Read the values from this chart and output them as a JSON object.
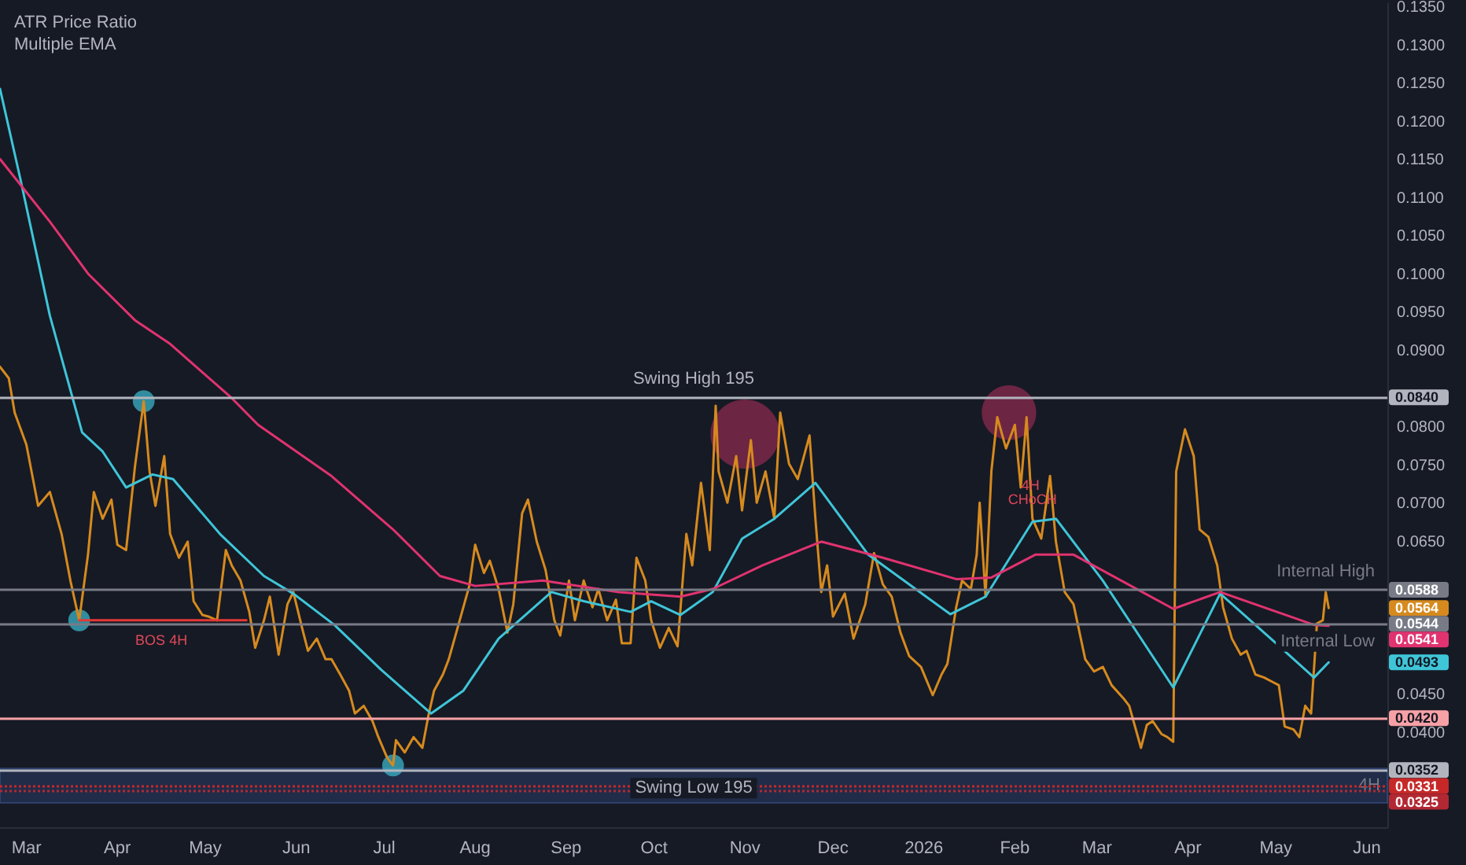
{
  "chart_data": {
    "type": "line",
    "title": "ATR Price Ratio",
    "subtitle": "Multiple EMA",
    "x": [
      "2025-02-20",
      "2025-02-23",
      "2025-02-25",
      "2025-03-01",
      "2025-03-05",
      "2025-03-09",
      "2025-03-13",
      "2025-03-16",
      "2025-03-19",
      "2025-03-22",
      "2025-03-24",
      "2025-03-27",
      "2025-03-30",
      "2025-04-01",
      "2025-04-04",
      "2025-04-07",
      "2025-04-10",
      "2025-04-12",
      "2025-04-14",
      "2025-04-17",
      "2025-04-19",
      "2025-04-22",
      "2025-04-25",
      "2025-04-27",
      "2025-04-30",
      "2025-05-02",
      "2025-05-05",
      "2025-05-08",
      "2025-05-10",
      "2025-05-13",
      "2025-05-16",
      "2025-05-18",
      "2025-05-21",
      "2025-05-23",
      "2025-05-26",
      "2025-05-29",
      "2025-05-31",
      "2025-06-03",
      "2025-06-05",
      "2025-06-08",
      "2025-06-11",
      "2025-06-13",
      "2025-06-16",
      "2025-06-19",
      "2025-06-21",
      "2025-06-24",
      "2025-06-27",
      "2025-06-29",
      "2025-07-02",
      "2025-07-04",
      "2025-07-05",
      "2025-07-08",
      "2025-07-11",
      "2025-07-14",
      "2025-07-16",
      "2025-07-18",
      "2025-07-21",
      "2025-07-23",
      "2025-07-26",
      "2025-07-30",
      "2025-08-01",
      "2025-08-04",
      "2025-08-06",
      "2025-08-09",
      "2025-08-12",
      "2025-08-14",
      "2025-08-17",
      "2025-08-19",
      "2025-08-22",
      "2025-08-25",
      "2025-08-28",
      "2025-08-30",
      "2025-09-02",
      "2025-09-04",
      "2025-09-07",
      "2025-09-10",
      "2025-09-12",
      "2025-09-15",
      "2025-09-18",
      "2025-09-20",
      "2025-09-23",
      "2025-09-25",
      "2025-09-28",
      "2025-09-30",
      "2025-10-03",
      "2025-10-06",
      "2025-10-09",
      "2025-10-12",
      "2025-10-14",
      "2025-10-17",
      "2025-10-20",
      "2025-10-22",
      "2025-10-23",
      "2025-10-26",
      "2025-10-29",
      "2025-10-31",
      "2025-11-03",
      "2025-11-05",
      "2025-11-08",
      "2025-11-11",
      "2025-11-13",
      "2025-11-16",
      "2025-11-19",
      "2025-11-23",
      "2025-11-25",
      "2025-11-27",
      "2025-11-29",
      "2025-12-01",
      "2025-12-05",
      "2025-12-08",
      "2025-12-12",
      "2025-12-15",
      "2025-12-18",
      "2025-12-21",
      "2025-12-24",
      "2025-12-27",
      "2025-12-31",
      "2026-01-04",
      "2026-01-07",
      "2026-01-09",
      "2026-01-12",
      "2026-01-14",
      "2026-01-17",
      "2026-01-19",
      "2026-01-20",
      "2026-01-22",
      "2026-01-24",
      "2026-01-26",
      "2026-01-29",
      "2026-02-01",
      "2026-02-03",
      "2026-02-05",
      "2026-02-07",
      "2026-02-10",
      "2026-02-13",
      "2026-02-15",
      "2026-02-18",
      "2026-02-21",
      "2026-02-25",
      "2026-02-28",
      "2026-03-03",
      "2026-03-06",
      "2026-03-10",
      "2026-03-12",
      "2026-03-16",
      "2026-03-18",
      "2026-03-20",
      "2026-03-23",
      "2026-03-25",
      "2026-03-27",
      "2026-03-28",
      "2026-03-31",
      "2026-04-03",
      "2026-04-05",
      "2026-04-08",
      "2026-04-11",
      "2026-04-13",
      "2026-04-16",
      "2026-04-19",
      "2026-04-21",
      "2026-04-24",
      "2026-04-27",
      "2026-04-30",
      "2026-05-02",
      "2026-05-04",
      "2026-05-07",
      "2026-05-09",
      "2026-05-11",
      "2026-05-13",
      "2026-05-15",
      "2026-05-17",
      "2026-05-18",
      "2026-05-19"
    ],
    "series": [
      {
        "color": "#d68a1e",
        "values": [
          0.088,
          0.0865,
          0.082,
          0.0778,
          0.0698,
          0.0716,
          0.0661,
          0.06,
          0.0548,
          0.0634,
          0.0716,
          0.0681,
          0.0706,
          0.0647,
          0.064,
          0.0749,
          0.0835,
          0.0743,
          0.0698,
          0.0763,
          0.0661,
          0.063,
          0.0651,
          0.0573,
          0.0555,
          0.0553,
          0.0548,
          0.064,
          0.062,
          0.06,
          0.0559,
          0.0512,
          0.0548,
          0.0579,
          0.0503,
          0.0569,
          0.0585,
          0.0538,
          0.0508,
          0.0524,
          0.0497,
          0.0497,
          0.0477,
          0.0456,
          0.0426,
          0.0436,
          0.0416,
          0.0395,
          0.0368,
          0.0358,
          0.0391,
          0.0375,
          0.0395,
          0.0381,
          0.0422,
          0.0456,
          0.0477,
          0.0497,
          0.0538,
          0.0593,
          0.0647,
          0.061,
          0.0626,
          0.0589,
          0.0532,
          0.0569,
          0.0688,
          0.0706,
          0.0651,
          0.0614,
          0.0548,
          0.0528,
          0.06,
          0.0548,
          0.06,
          0.0565,
          0.0589,
          0.0548,
          0.0575,
          0.0518,
          0.0518,
          0.063,
          0.06,
          0.0548,
          0.0512,
          0.0538,
          0.0514,
          0.0661,
          0.062,
          0.0728,
          0.064,
          0.0829,
          0.0743,
          0.0702,
          0.0763,
          0.0692,
          0.0784,
          0.0702,
          0.0743,
          0.0681,
          0.082,
          0.0753,
          0.0733,
          0.079,
          0.0681,
          0.0585,
          0.062,
          0.0553,
          0.0583,
          0.0524,
          0.0569,
          0.0636,
          0.0595,
          0.0579,
          0.0532,
          0.0501,
          0.0487,
          0.045,
          0.0477,
          0.0491,
          0.0565,
          0.06,
          0.0589,
          0.0634,
          0.0702,
          0.0579,
          0.0743,
          0.0814,
          0.0773,
          0.0804,
          0.0722,
          0.0814,
          0.0681,
          0.0655,
          0.0737,
          0.0651,
          0.0585,
          0.0569,
          0.0497,
          0.0481,
          0.0487,
          0.0463,
          0.0446,
          0.0436,
          0.0381,
          0.0411,
          0.0416,
          0.0399,
          0.0395,
          0.0389,
          0.0743,
          0.0798,
          0.0763,
          0.0667,
          0.0657,
          0.062,
          0.0565,
          0.0524,
          0.0503,
          0.0508,
          0.0477,
          0.0473,
          0.0467,
          0.0463,
          0.0409,
          0.0405,
          0.0395,
          0.0436,
          0.0426,
          0.0544,
          0.0548,
          0.0585,
          0.0564
        ]
      },
      {
        "color": "#3fc5d8",
        "x": [
          "2025-02-20",
          "2025-02-27",
          "2025-03-09",
          "2025-03-20",
          "2025-03-27",
          "2025-04-04",
          "2025-04-13",
          "2025-04-20",
          "2025-05-06",
          "2025-05-21",
          "2025-05-31",
          "2025-06-14",
          "2025-06-30",
          "2025-07-17",
          "2025-07-28",
          "2025-08-09",
          "2025-08-27",
          "2025-09-07",
          "2025-09-23",
          "2025-09-30",
          "2025-10-10",
          "2025-10-21",
          "2025-10-31",
          "2025-11-11",
          "2025-11-25",
          "2025-12-13",
          "2026-01-10",
          "2026-01-22",
          "2026-02-07",
          "2026-02-15",
          "2026-03-03",
          "2026-03-27",
          "2026-04-12",
          "2026-05-01",
          "2026-05-14",
          "2026-05-19"
        ],
        "values": [
          0.1244,
          0.1125,
          0.0947,
          0.0794,
          0.0769,
          0.0722,
          0.0739,
          0.0733,
          0.0661,
          0.0606,
          0.0583,
          0.0542,
          0.0483,
          0.0426,
          0.0456,
          0.0524,
          0.0585,
          0.0573,
          0.0559,
          0.0573,
          0.0555,
          0.0585,
          0.0655,
          0.0681,
          0.0728,
          0.0634,
          0.0556,
          0.0579,
          0.0677,
          0.0681,
          0.06,
          0.046,
          0.0583,
          0.0518,
          0.0473,
          0.0493
        ]
      },
      {
        "color": "#e0336f",
        "x": [
          "2025-02-20",
          "2025-03-09",
          "2025-03-22",
          "2025-04-07",
          "2025-04-19",
          "2025-05-10",
          "2025-05-19",
          "2025-06-13",
          "2025-07-04",
          "2025-07-20",
          "2025-08-01",
          "2025-08-24",
          "2025-09-19",
          "2025-10-10",
          "2025-10-21",
          "2025-11-07",
          "2025-11-27",
          "2025-12-18",
          "2026-01-12",
          "2026-01-24",
          "2026-02-08",
          "2026-02-21",
          "2026-03-27",
          "2026-04-12",
          "2026-05-14",
          "2026-05-19"
        ],
        "values": [
          0.1152,
          0.107,
          0.1002,
          0.0941,
          0.091,
          0.0839,
          0.0804,
          0.0737,
          0.0667,
          0.0606,
          0.0593,
          0.06,
          0.0585,
          0.0579,
          0.0589,
          0.062,
          0.0651,
          0.063,
          0.0602,
          0.0604,
          0.0634,
          0.0634,
          0.0563,
          0.0585,
          0.0542,
          0.0541
        ]
      },
      {
        "type": "line",
        "color": "#e53935",
        "x": [
          "2025-03-19",
          "2025-05-15"
        ],
        "values": [
          0.0548,
          0.0548
        ]
      },
      {
        "type": "bubble",
        "color": "#3bb3c8",
        "x": [
          "2025-03-19",
          "2025-04-10",
          "2025-07-04"
        ],
        "values": [
          0.0548,
          0.0835,
          0.0358
        ],
        "sizes": [
          0.1,
          0.1,
          0.1
        ]
      },
      {
        "type": "bubble",
        "color": "#8a2a4e",
        "x": [
          "2025-11-01",
          "2026-01-30"
        ],
        "values": [
          0.0792,
          0.082
        ],
        "sizes": [
          1,
          0.62
        ]
      }
    ],
    "xlim": [
      "2025-02-20",
      "2026-06-08"
    ],
    "xticks": [
      {
        "value": "2025-03-01",
        "label": "Mar"
      },
      {
        "value": "2025-04-01",
        "label": "Apr"
      },
      {
        "value": "2025-05-01",
        "label": "May"
      },
      {
        "value": "2025-06-01",
        "label": "Jun"
      },
      {
        "value": "2025-07-01",
        "label": "Jul"
      },
      {
        "value": "2025-08-01",
        "label": "Aug"
      },
      {
        "value": "2025-09-01",
        "label": "Sep"
      },
      {
        "value": "2025-10-01",
        "label": "Oct"
      },
      {
        "value": "2025-11-01",
        "label": "Nov"
      },
      {
        "value": "2025-12-01",
        "label": "Dec"
      },
      {
        "value": "2026-01-01",
        "label": "2026"
      },
      {
        "value": "2026-02-01",
        "label": "Feb"
      },
      {
        "value": "2026-03-01",
        "label": "Mar"
      },
      {
        "value": "2026-04-01",
        "label": "Apr"
      },
      {
        "value": "2026-05-01",
        "label": "May"
      },
      {
        "value": "2026-06-01",
        "label": "Jun"
      }
    ],
    "ylim": [
      0.0277,
      0.1356
    ],
    "yticks": [
      {
        "value": 0.04,
        "label": "0.0400"
      },
      {
        "value": 0.045,
        "label": "0.0450"
      },
      {
        "value": 0.065,
        "label": "0.0650"
      },
      {
        "value": 0.07,
        "label": "0.0700"
      },
      {
        "value": 0.075,
        "label": "0.0750"
      },
      {
        "value": 0.08,
        "label": "0.0800"
      },
      {
        "value": 0.09,
        "label": "0.0900"
      },
      {
        "value": 0.095,
        "label": "0.0950"
      },
      {
        "value": 0.1,
        "label": "0.1000"
      },
      {
        "value": 0.105,
        "label": "0.1050"
      },
      {
        "value": 0.11,
        "label": "0.1100"
      },
      {
        "value": 0.115,
        "label": "0.1150"
      },
      {
        "value": 0.12,
        "label": "0.1200"
      },
      {
        "value": 0.125,
        "label": "0.1250"
      },
      {
        "value": 0.13,
        "label": "0.1300"
      },
      {
        "value": 0.135,
        "label": "0.1350"
      }
    ],
    "ref_lines": [
      {
        "axis": "y",
        "value": 0.084,
        "label": "Swing High 195",
        "color": "#b2b5be"
      },
      {
        "axis": "y",
        "value": 0.0352,
        "label": "Swing Low 195",
        "color": "#b2b5be"
      },
      {
        "axis": "y",
        "value": 0.042,
        "label": null,
        "color": "#f7a1a6"
      },
      {
        "axis": "y",
        "value": 0.0588,
        "label": "Internal High",
        "color": "#787b86"
      },
      {
        "axis": "y",
        "value": 0.0544,
        "label": "Internal Low",
        "color": "#787b86"
      },
      {
        "axis": "y",
        "value": 0.0331,
        "label": null,
        "color": "#c62828",
        "line_style": "dotted"
      },
      {
        "axis": "y",
        "value": 0.0325,
        "label": null,
        "color": "#b22833",
        "line_style": "dotted"
      }
    ],
    "bands": [
      {
        "axis": "y",
        "from": 0.0309,
        "to": 0.0354,
        "label": "4H",
        "color": "#2a3d66"
      }
    ],
    "annotations": [
      {
        "text": "BOS 4H",
        "x": "2025-04-16",
        "y": 0.0548
      },
      {
        "text": "4H CHoCH",
        "x": "2026-02-07",
        "y": 0.0681
      },
      "0.0840",
      "0.0588",
      "0.0564",
      "0.0544",
      "0.0541",
      "0.0493",
      "0.0420",
      "0.0352",
      "0.0331",
      "0.0325"
    ]
  }
}
